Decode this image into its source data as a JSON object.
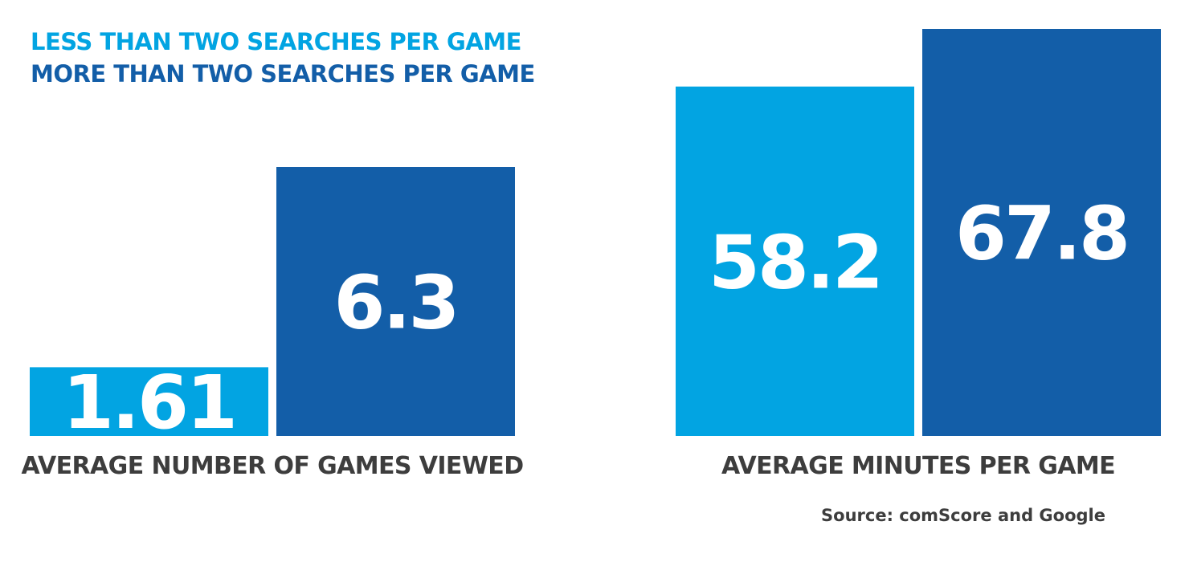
{
  "legend": [
    {
      "label": "LESS THAN TWO SEARCHES PER GAME",
      "color": "#02a4e2"
    },
    {
      "label": "MORE THAN TWO SEARCHES PER GAME",
      "color": "#135ea8"
    }
  ],
  "chart_data": [
    {
      "type": "bar",
      "xlabel": "AVERAGE NUMBER OF GAMES VIEWED",
      "series": [
        {
          "name": "LESS THAN TWO SEARCHES PER GAME",
          "value": 1.61,
          "label": "1.61"
        },
        {
          "name": "MORE THAN TWO SEARCHES PER GAME",
          "value": 6.3,
          "label": "6.3"
        }
      ],
      "grid": false,
      "legend_position": "top-left"
    },
    {
      "type": "bar",
      "xlabel": "AVERAGE MINUTES PER GAME",
      "series": [
        {
          "name": "LESS THAN TWO SEARCHES PER GAME",
          "value": 58.2,
          "label": "58.2"
        },
        {
          "name": "MORE THAN TWO SEARCHES PER GAME",
          "value": 67.8,
          "label": "67.8"
        }
      ],
      "grid": false,
      "legend_position": "top-left"
    }
  ],
  "source": "Source: comScore and Google"
}
